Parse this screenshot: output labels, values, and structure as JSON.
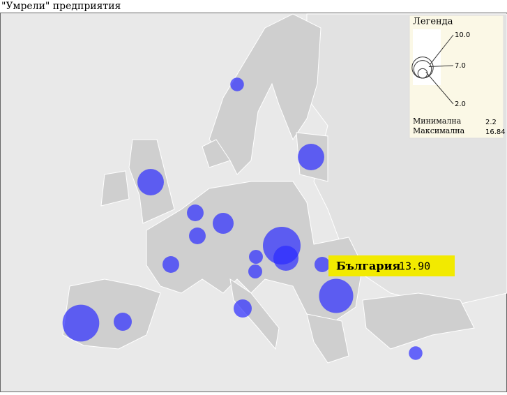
{
  "title": "\"Умрели\" предприятия",
  "bubbles": {
    "values": [
      2.2,
      8.3,
      8.3,
      3.3,
      3.3,
      5.2,
      3.3,
      16.84,
      7.5,
      2.3,
      2.3,
      2.8,
      13.9,
      3.9,
      3.9,
      16.0,
      2.2
    ],
    "color": "#2b2bff"
  },
  "legend": {
    "title": "Легенда",
    "ticks": [
      {
        "value": 10,
        "label": "10.0"
      },
      {
        "value": 7,
        "label": "7.0"
      },
      {
        "value": 2,
        "label": "2.0"
      }
    ],
    "min": {
      "label": "Минимална",
      "value": 2.2
    },
    "max": {
      "label": "Максимална",
      "value": 16.84
    }
  },
  "tooltip": {
    "name": "България",
    "value": "13.90"
  }
}
